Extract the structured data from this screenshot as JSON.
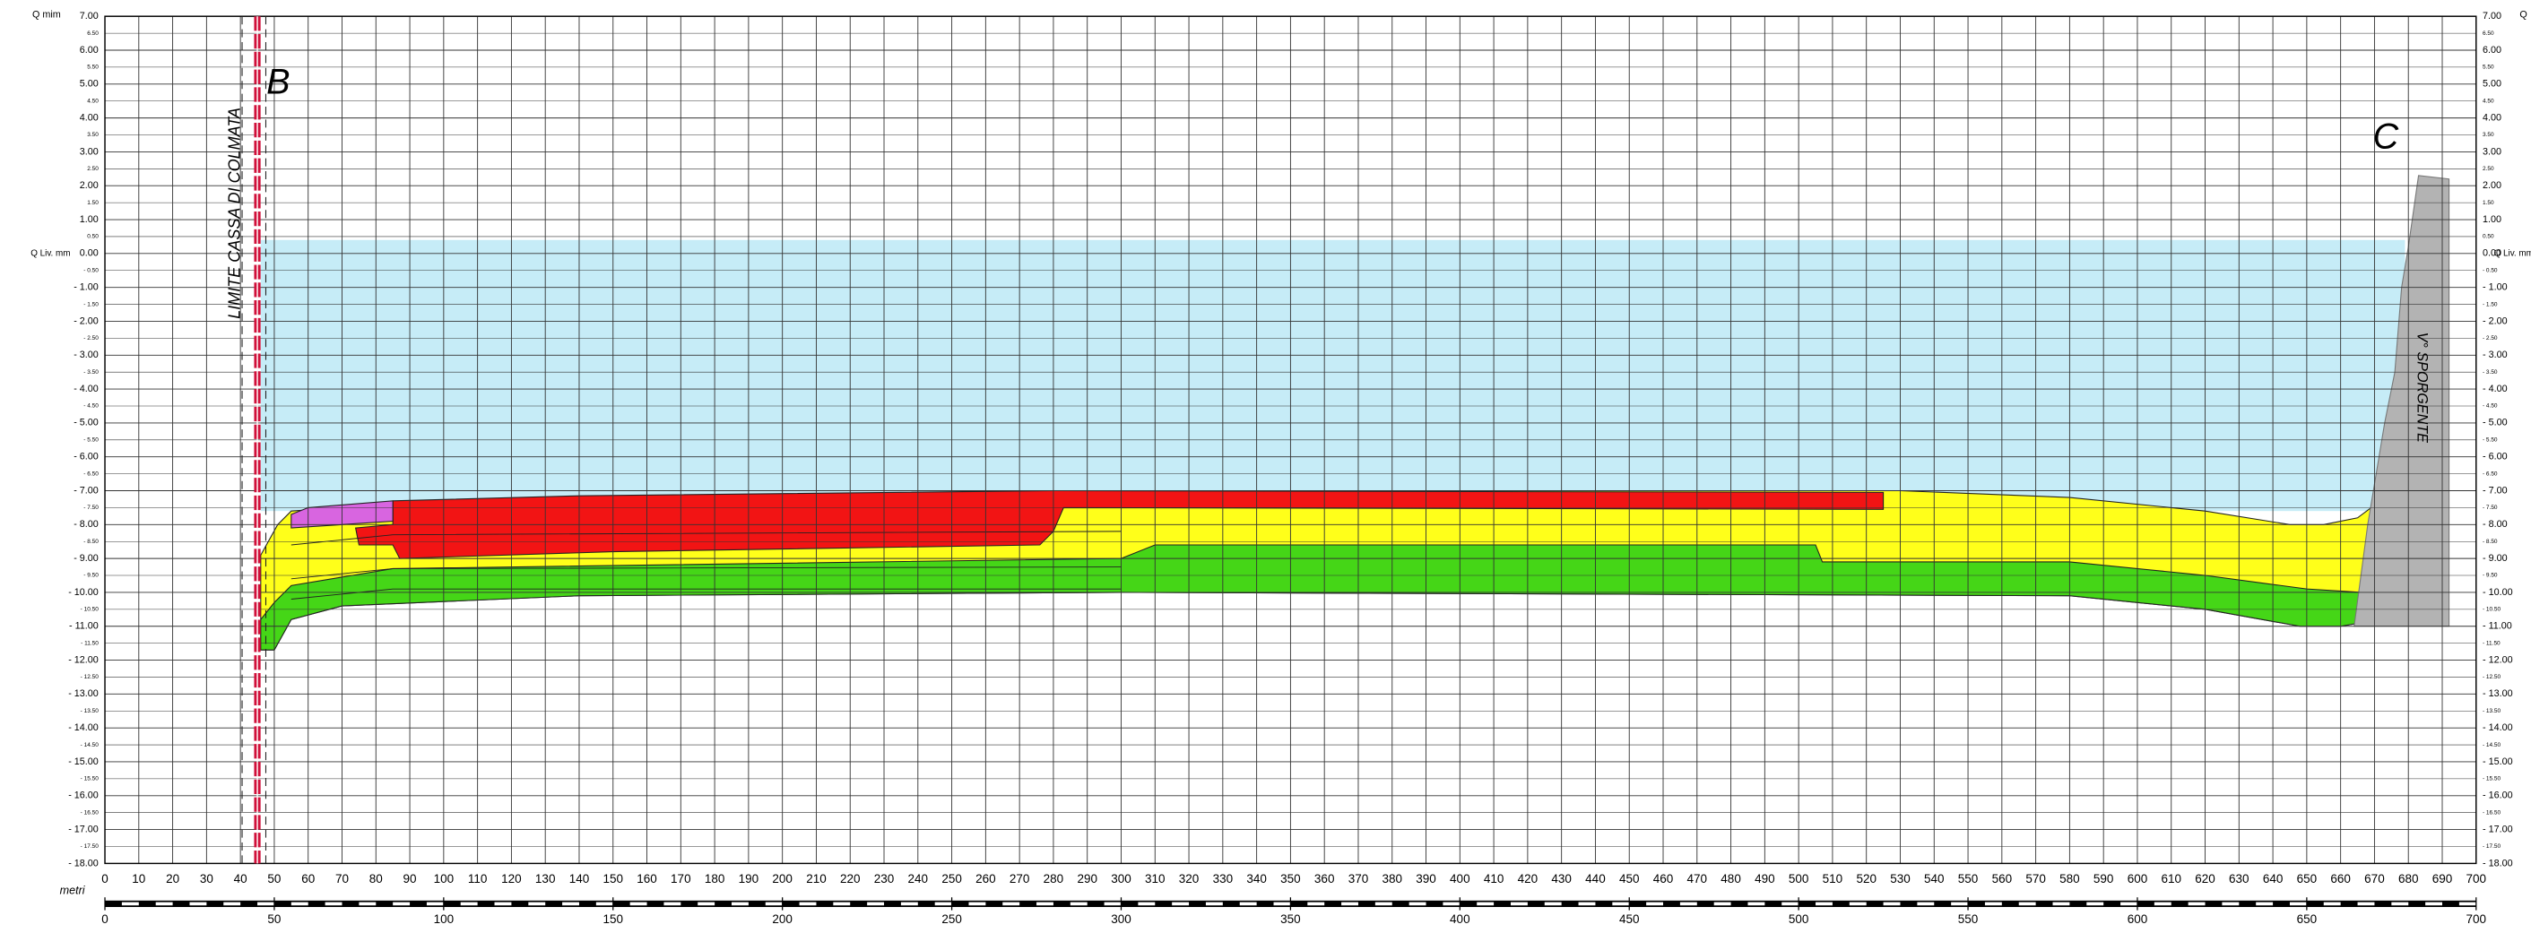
{
  "header": {
    "left_top": "Q mim",
    "right_top": "Q",
    "level_label": "Q Liv. mm"
  },
  "y_labels": [
    "7.00",
    "6.50",
    "6.00",
    "5.50",
    "5.00",
    "4.50",
    "4.00",
    "3.50",
    "3.00",
    "2.50",
    "2.00",
    "1.50",
    "1.00",
    "0.50",
    "0.00",
    "- 0.50",
    "- 1.00",
    "- 1.50",
    "- 2.00",
    "- 2.50",
    "- 3.00",
    "- 3.50",
    "- 4.00",
    "- 4.50",
    "- 5.00",
    "- 5.50",
    "- 6.00",
    "- 6.50",
    "- 7.00",
    "- 7.50",
    "- 8.00",
    "- 8.50",
    "- 9.00",
    "- 9.50",
    "- 10.00",
    "- 10.50",
    "- 11.00",
    "- 11.50",
    "- 12.00",
    "- 12.50",
    "- 13.00",
    "- 13.50",
    "- 14.00",
    "- 14.50",
    "- 15.00",
    "- 15.50",
    "- 16.00",
    "- 16.50",
    "- 17.00",
    "- 17.50",
    "- 18.00"
  ],
  "x_labels": [
    "0",
    "10",
    "20",
    "30",
    "40",
    "50",
    "60",
    "70",
    "80",
    "90",
    "100",
    "110",
    "120",
    "130",
    "140",
    "150",
    "160",
    "170",
    "180",
    "190",
    "200",
    "210",
    "220",
    "230",
    "240",
    "250",
    "260",
    "270",
    "280",
    "290",
    "300",
    "310",
    "320",
    "330",
    "340",
    "350",
    "360",
    "370",
    "380",
    "390",
    "400",
    "410",
    "420",
    "430",
    "440",
    "450",
    "460",
    "470",
    "480",
    "490",
    "500",
    "510",
    "520",
    "530",
    "540",
    "550",
    "560",
    "570",
    "580",
    "590",
    "600",
    "610",
    "620",
    "630",
    "640",
    "650",
    "660",
    "670",
    "680",
    "690",
    "700"
  ],
  "x_unit": "metri",
  "scale_labels": [
    "0",
    "50",
    "100",
    "150",
    "200",
    "250",
    "300",
    "350",
    "400",
    "450",
    "500",
    "550",
    "600",
    "650",
    "700"
  ],
  "annotations": {
    "limit": "LIMITE CASSA DI COLMATA",
    "b": "B",
    "c": "C",
    "structure": "V° SPORGENTE"
  }
}
